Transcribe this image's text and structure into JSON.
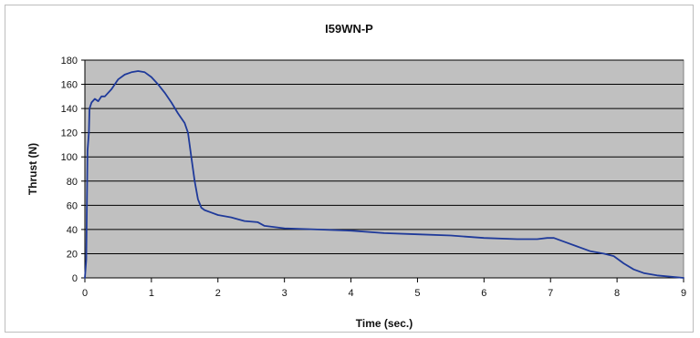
{
  "chart_data": {
    "type": "line",
    "title": "I59WN-P",
    "xlabel": "Time (sec.)",
    "ylabel": "Thrust (N)",
    "xlim": [
      0,
      9
    ],
    "ylim": [
      0,
      180
    ],
    "xticks": [
      0,
      1,
      2,
      3,
      4,
      5,
      6,
      7,
      8,
      9
    ],
    "yticks": [
      0,
      20,
      40,
      60,
      80,
      100,
      120,
      140,
      160,
      180
    ],
    "grid": "horizontal",
    "legend": "none",
    "plot_background": "#c0c0c0",
    "series": [
      {
        "color": "#1f3a9a",
        "points": [
          [
            0.0,
            0
          ],
          [
            0.02,
            15
          ],
          [
            0.04,
            105
          ],
          [
            0.06,
            120
          ],
          [
            0.07,
            140
          ],
          [
            0.1,
            145
          ],
          [
            0.15,
            148
          ],
          [
            0.2,
            146
          ],
          [
            0.25,
            150
          ],
          [
            0.3,
            150
          ],
          [
            0.4,
            156
          ],
          [
            0.5,
            164
          ],
          [
            0.6,
            168
          ],
          [
            0.7,
            170
          ],
          [
            0.8,
            171
          ],
          [
            0.9,
            170
          ],
          [
            1.0,
            166
          ],
          [
            1.1,
            160
          ],
          [
            1.2,
            153
          ],
          [
            1.3,
            145
          ],
          [
            1.4,
            136
          ],
          [
            1.5,
            128
          ],
          [
            1.55,
            120
          ],
          [
            1.6,
            100
          ],
          [
            1.65,
            80
          ],
          [
            1.7,
            65
          ],
          [
            1.75,
            58
          ],
          [
            1.8,
            56
          ],
          [
            1.9,
            54
          ],
          [
            2.0,
            52
          ],
          [
            2.2,
            50
          ],
          [
            2.4,
            47
          ],
          [
            2.6,
            46
          ],
          [
            2.7,
            43
          ],
          [
            3.0,
            41
          ],
          [
            3.5,
            40
          ],
          [
            4.0,
            39
          ],
          [
            4.5,
            37
          ],
          [
            5.0,
            36
          ],
          [
            5.5,
            35
          ],
          [
            6.0,
            33
          ],
          [
            6.5,
            32
          ],
          [
            6.8,
            32
          ],
          [
            6.95,
            33
          ],
          [
            7.05,
            33
          ],
          [
            7.2,
            30
          ],
          [
            7.4,
            26
          ],
          [
            7.6,
            22
          ],
          [
            7.8,
            20
          ],
          [
            7.95,
            18
          ],
          [
            8.1,
            12
          ],
          [
            8.25,
            7
          ],
          [
            8.4,
            4
          ],
          [
            8.6,
            2
          ],
          [
            8.8,
            1
          ],
          [
            9.0,
            0
          ]
        ]
      }
    ]
  }
}
